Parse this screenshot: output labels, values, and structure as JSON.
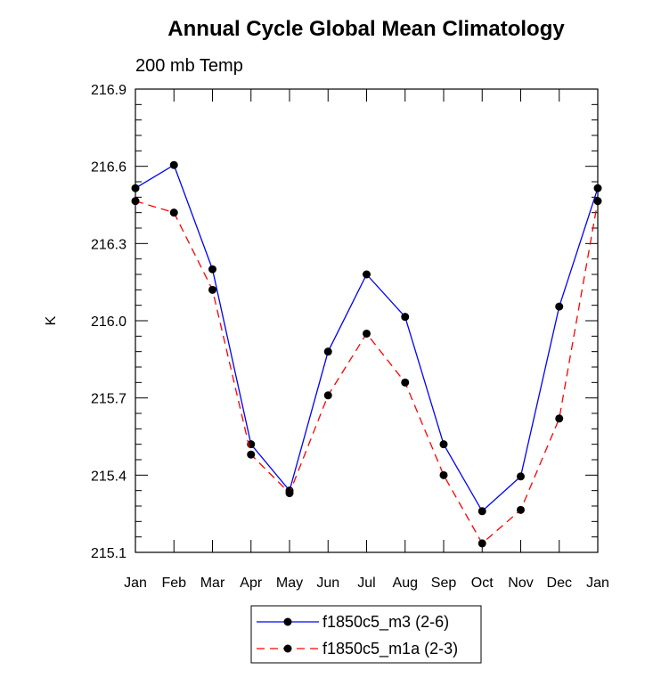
{
  "chart_data": {
    "type": "line",
    "title": "Annual Cycle Global Mean Climatology",
    "subtitle": "200 mb Temp",
    "xlabel": "",
    "ylabel": "K",
    "categories": [
      "Jan",
      "Feb",
      "Mar",
      "Apr",
      "May",
      "Jun",
      "Jul",
      "Aug",
      "Sep",
      "Oct",
      "Nov",
      "Dec",
      "Jan"
    ],
    "ylim": [
      215.1,
      216.9
    ],
    "yticks": [
      "215.1",
      "215.4",
      "215.7",
      "216.0",
      "216.3",
      "216.6",
      "216.9"
    ],
    "grid": false,
    "legend_position": "bottom-center",
    "series": [
      {
        "name": "f1850c5_m3 (2-6)",
        "color": "#0000ff",
        "dash": "solid",
        "values": [
          216.515,
          216.605,
          216.2,
          215.52,
          215.34,
          215.88,
          216.18,
          216.015,
          215.52,
          215.26,
          215.395,
          216.055,
          216.515
        ]
      },
      {
        "name": "f1850c5_m1a (2-3)",
        "color": "#ff0000",
        "dash": "dashed",
        "values": [
          216.465,
          216.42,
          216.12,
          215.48,
          215.33,
          215.71,
          215.95,
          215.76,
          215.4,
          215.135,
          215.265,
          215.62,
          216.465
        ]
      }
    ]
  }
}
